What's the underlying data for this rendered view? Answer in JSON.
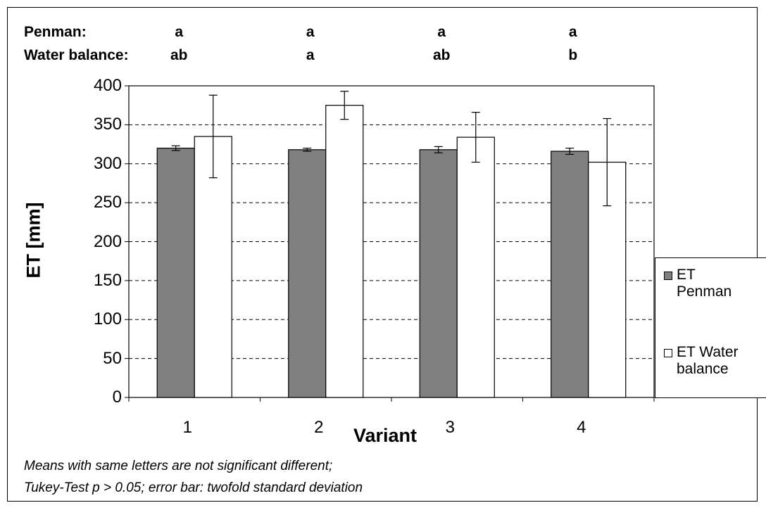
{
  "significance": {
    "rows": [
      {
        "label": "Penman:",
        "letters": [
          "a",
          "a",
          "a",
          "a"
        ]
      },
      {
        "label": "Water balance:",
        "letters": [
          "ab",
          "a",
          "ab",
          "b"
        ]
      }
    ]
  },
  "notes": [
    "Means with same letters are not significant different;",
    "Tukey-Test p > 0.05; error bar: twofold standard deviation"
  ],
  "colors": {
    "penman": "#808080",
    "water_balance": "#ffffff",
    "gridline": "#000000"
  },
  "chart_data": {
    "type": "bar",
    "xlabel": "Variant",
    "ylabel": "ET  [mm]",
    "categories": [
      "1",
      "2",
      "3",
      "4"
    ],
    "ylim": [
      0,
      400
    ],
    "yticks": [
      "0",
      "50",
      "100",
      "150",
      "200",
      "250",
      "300",
      "350",
      "400"
    ],
    "grid": "dashed horizontal",
    "legend_position": "right",
    "series": [
      {
        "name": "ET Penman",
        "values": [
          320,
          318,
          318,
          316
        ],
        "error": [
          3,
          2,
          4,
          4
        ]
      },
      {
        "name": "ET Water balance",
        "values": [
          335,
          375,
          334,
          302
        ],
        "error": [
          53,
          18,
          32,
          56
        ]
      }
    ]
  },
  "legend": [
    {
      "line1": "ET",
      "line2": "Penman"
    },
    {
      "line1": "ET Water",
      "line2": "balance"
    }
  ]
}
